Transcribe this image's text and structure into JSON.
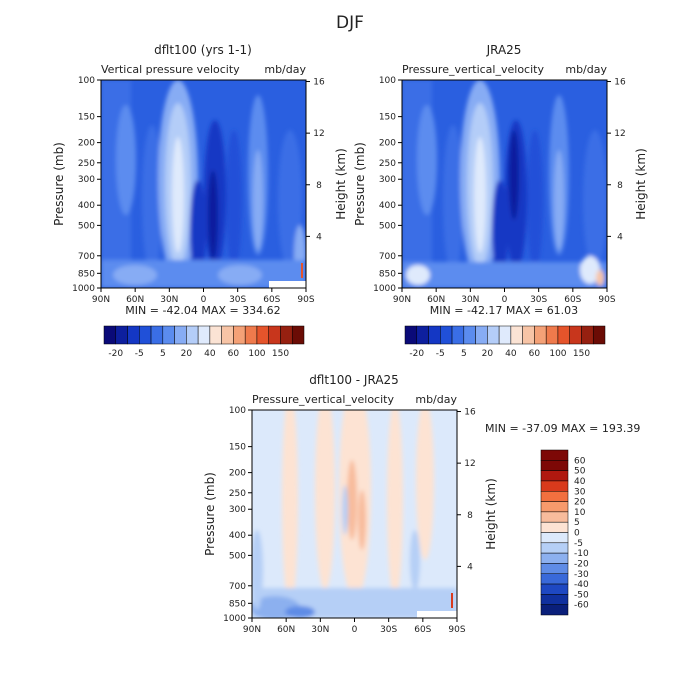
{
  "figure_title": "DJF",
  "chart_data": [
    {
      "type": "heatmap",
      "title": "dflt100 (yrs 1-1)",
      "subtitle_left": "Vertical pressure velocity",
      "subtitle_right": "mb/day",
      "ylabel": "Pressure (mb)",
      "y2label": "Height (km)",
      "x_ticks": [
        "90N",
        "60N",
        "30N",
        "0",
        "30S",
        "60S",
        "90S"
      ],
      "y_ticks": [
        "100",
        "150",
        "200",
        "250",
        "300",
        "400",
        "500",
        "700",
        "850",
        "1000"
      ],
      "y2_ticks": [
        "16",
        "12",
        "8",
        "4"
      ],
      "ylim": [
        1000,
        100
      ],
      "stats": "MIN = -42.04   MAX = 334.62",
      "colorbar_labels": [
        "-20",
        "-5",
        "5",
        "20",
        "40",
        "60",
        "100",
        "150"
      ]
    },
    {
      "type": "heatmap",
      "title": "JRA25",
      "subtitle_left": "Pressure_vertical_velocity",
      "subtitle_right": "mb/day",
      "ylabel": "Pressure (mb)",
      "y2label": "Height (km)",
      "x_ticks": [
        "90N",
        "60N",
        "30N",
        "0",
        "30S",
        "60S",
        "90S"
      ],
      "y_ticks": [
        "100",
        "150",
        "200",
        "250",
        "300",
        "400",
        "500",
        "700",
        "850",
        "1000"
      ],
      "y2_ticks": [
        "16",
        "12",
        "8",
        "4"
      ],
      "ylim": [
        1000,
        100
      ],
      "stats": "MIN = -42.17   MAX =  61.03",
      "colorbar_labels": [
        "-20",
        "-5",
        "5",
        "20",
        "40",
        "60",
        "100",
        "150"
      ]
    },
    {
      "type": "heatmap",
      "title": "dflt100 - JRA25",
      "subtitle_left": "Pressure_vertical_velocity",
      "subtitle_right": "mb/day",
      "ylabel": "Pressure (mb)",
      "y2label": "Height (km)",
      "x_ticks": [
        "90N",
        "60N",
        "30N",
        "0",
        "30S",
        "60S",
        "90S"
      ],
      "y_ticks": [
        "100",
        "150",
        "200",
        "250",
        "300",
        "400",
        "500",
        "700",
        "850",
        "1000"
      ],
      "y2_ticks": [
        "16",
        "12",
        "8",
        "4"
      ],
      "ylim": [
        1000,
        100
      ],
      "stats": "MIN = -37.09   MAX = 193.39",
      "colorbar_labels": [
        "60",
        "50",
        "40",
        "30",
        "20",
        "10",
        "5",
        "0",
        "-5",
        "-10",
        "-20",
        "-30",
        "-40",
        "-50",
        "-60"
      ]
    }
  ],
  "colors": {
    "abs_scale": [
      "#0a0a78",
      "#0d1f9e",
      "#1437c4",
      "#2050d8",
      "#3a6ee6",
      "#5b8cef",
      "#87acf4",
      "#b4cdf8",
      "#dfeafc",
      "#fbe3d4",
      "#f7c4a6",
      "#f4a177",
      "#ef7a4c",
      "#e5542b",
      "#c8361c",
      "#962010",
      "#6b0c05"
    ],
    "diff_scale": [
      "#7d0806",
      "#b0180f",
      "#d93a1c",
      "#f2703f",
      "#f79a6c",
      "#f8bc9c",
      "#fde3d3",
      "#dce9fb",
      "#b5cff6",
      "#8cb0ef",
      "#5f8ce6",
      "#3969d9",
      "#1e48c2",
      "#10309e",
      "#0a1f7a"
    ]
  }
}
